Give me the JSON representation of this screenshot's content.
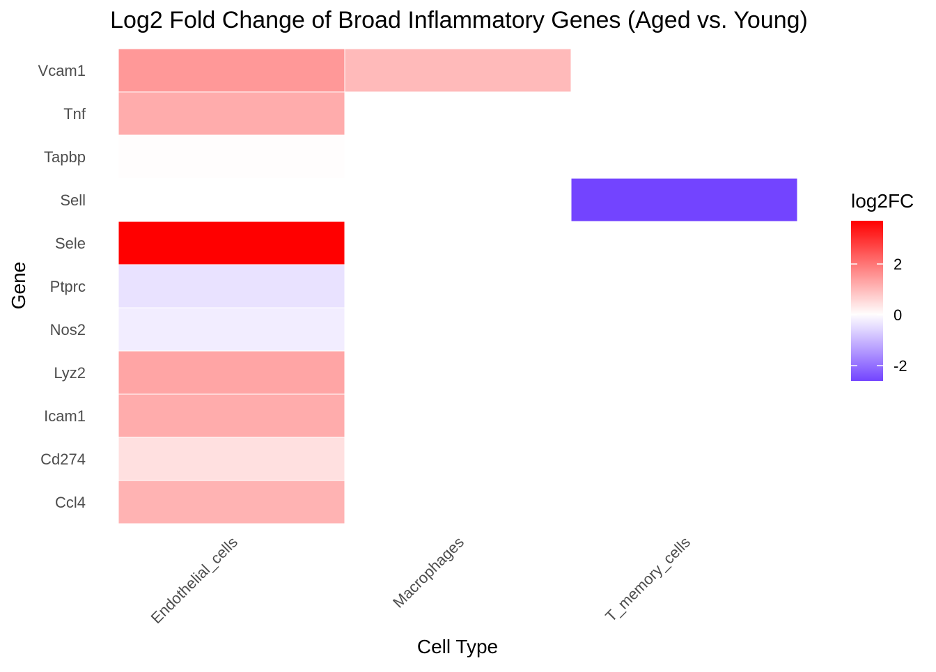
{
  "chart_data": {
    "type": "heatmap",
    "title": "Log2 Fold Change of Broad Inflammatory Genes (Aged vs. Young)",
    "xlabel": "Cell Type",
    "ylabel": "Gene",
    "x_categories": [
      "Endothelial_cells",
      "Macrophages",
      "T_memory_cells"
    ],
    "y_categories": [
      "Vcam1",
      "Tnf",
      "Tapbp",
      "Sell",
      "Sele",
      "Ptprc",
      "Nos2",
      "Lyz2",
      "Icam1",
      "Cd274",
      "Ccl4"
    ],
    "cells": [
      {
        "x": "Endothelial_cells",
        "y": "Vcam1",
        "value": 1.5
      },
      {
        "x": "Macrophages",
        "y": "Vcam1",
        "value": 1.0
      },
      {
        "x": "Endothelial_cells",
        "y": "Tnf",
        "value": 1.2
      },
      {
        "x": "Endothelial_cells",
        "y": "Tapbp",
        "value": 0.03
      },
      {
        "x": "T_memory_cells",
        "y": "Sell",
        "value": -2.6
      },
      {
        "x": "Endothelial_cells",
        "y": "Sele",
        "value": 3.7
      },
      {
        "x": "Endothelial_cells",
        "y": "Ptprc",
        "value": -0.4
      },
      {
        "x": "Endothelial_cells",
        "y": "Nos2",
        "value": -0.25
      },
      {
        "x": "Endothelial_cells",
        "y": "Lyz2",
        "value": 1.3
      },
      {
        "x": "Endothelial_cells",
        "y": "Icam1",
        "value": 1.2
      },
      {
        "x": "Endothelial_cells",
        "y": "Cd274",
        "value": 0.45
      },
      {
        "x": "Endothelial_cells",
        "y": "Ccl4",
        "value": 1.1
      }
    ],
    "legend": {
      "title": "log2FC",
      "position": "right",
      "ticks": [
        -2,
        0,
        2
      ],
      "range": [
        -2.6,
        3.7
      ]
    },
    "colors": {
      "low": "#7344ff",
      "mid": "#ffffff",
      "high": "#ff0000"
    },
    "grid": false
  }
}
